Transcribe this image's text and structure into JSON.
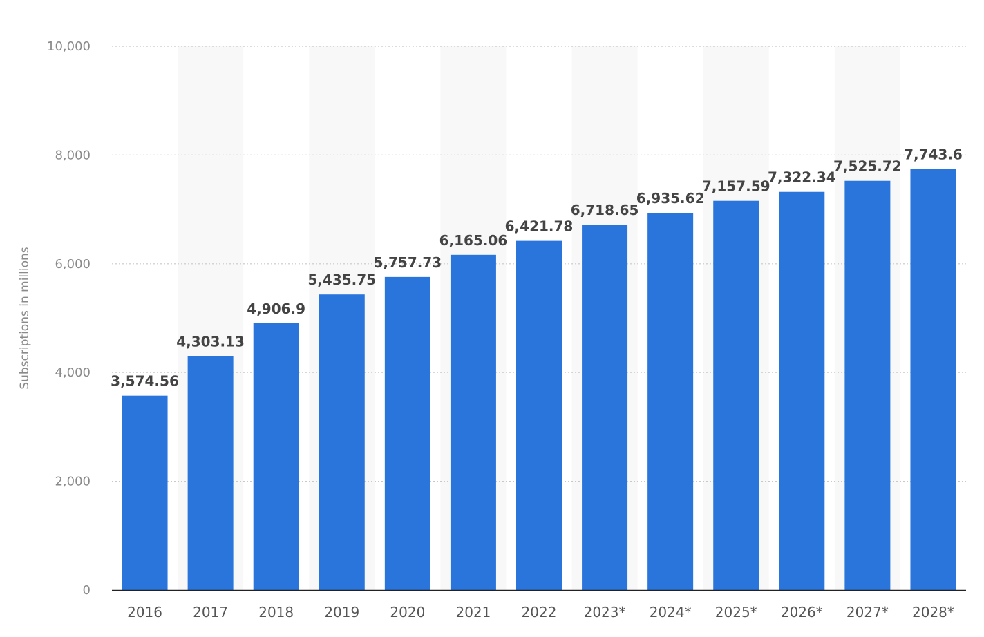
{
  "chart_data": {
    "type": "bar",
    "categories": [
      "2016",
      "2017",
      "2018",
      "2019",
      "2020",
      "2021",
      "2022",
      "2023*",
      "2024*",
      "2025*",
      "2026*",
      "2027*",
      "2028*"
    ],
    "values": [
      3574.56,
      4303.13,
      4906.9,
      5435.75,
      5757.73,
      6165.06,
      6421.78,
      6718.65,
      6935.62,
      7157.59,
      7322.34,
      7525.72,
      7743.6
    ],
    "value_labels": [
      "3,574.56",
      "4,303.13",
      "4,906.9",
      "5,435.75",
      "5,757.73",
      "6,165.06",
      "6,421.78",
      "6,718.65",
      "6,935.62",
      "7,157.59",
      "7,322.34",
      "7,525.72",
      "7,743.6"
    ],
    "ylabel": "Subscriptions in millions",
    "ylim": [
      0,
      10000
    ],
    "yticks": [
      0,
      2000,
      4000,
      6000,
      8000,
      10000
    ],
    "ytick_labels": [
      "0",
      "2,000",
      "4,000",
      "6,000",
      "8,000",
      "10,000"
    ],
    "grid": true,
    "bar_color": "#2a75dc",
    "band_color": "#f8f8f8"
  }
}
